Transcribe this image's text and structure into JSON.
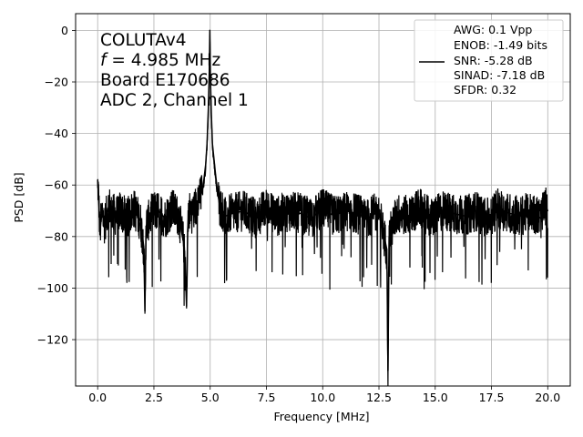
{
  "chart_data": {
    "type": "line",
    "xlabel": "Frequency [MHz]",
    "ylabel": "PSD [dB]",
    "xlim": [
      -0.98,
      21.0
    ],
    "ylim": [
      -138,
      6.5
    ],
    "xticks": [
      0.0,
      2.5,
      5.0,
      7.5,
      10.0,
      12.5,
      15.0,
      17.5,
      20.0
    ],
    "xtick_labels": [
      "0.0",
      "2.5",
      "5.0",
      "7.5",
      "10.0",
      "12.5",
      "15.0",
      "17.5",
      "20.0"
    ],
    "yticks": [
      0,
      -20,
      -40,
      -60,
      -80,
      -100,
      -120
    ],
    "ytick_labels": [
      "0",
      "−20",
      "−40",
      "−60",
      "−80",
      "−100",
      "−120"
    ],
    "grid": true,
    "line_color": "#000000",
    "annotation": {
      "lines": [
        "COLUTAv4",
        "f = 4.985 MHz",
        "Board E170686",
        "ADC 2, Channel 1"
      ],
      "italic_prefix": "f"
    },
    "legend": {
      "position": "top-right",
      "lines": [
        "AWG: 0.1 Vpp",
        "ENOB: -1.49 bits",
        "SNR: -5.28 dB",
        "SINAD: -7.18 dB",
        "SFDR: 0.32"
      ]
    },
    "series": [
      {
        "x": [
          0.0,
          0.05,
          0.1,
          0.2,
          0.3,
          0.5,
          0.8,
          1.0,
          1.3,
          1.6,
          1.9,
          2.05,
          2.1,
          2.15,
          2.4,
          2.7,
          3.0,
          3.3,
          3.6,
          3.85,
          3.95,
          4.0,
          4.05,
          4.2,
          4.4,
          4.55,
          4.65,
          4.72,
          4.8,
          4.86,
          4.92,
          4.96,
          4.985,
          5.01,
          5.05,
          5.1,
          5.17,
          5.24,
          5.32,
          5.42,
          5.55,
          5.7,
          6.0,
          6.5,
          7.0,
          7.5,
          8.0,
          8.5,
          9.0,
          9.5,
          10.0,
          10.5,
          11.0,
          11.5,
          12.0,
          12.5,
          12.85,
          12.9,
          12.95,
          13.3,
          13.8,
          14.3,
          14.8,
          15.3,
          15.8,
          16.3,
          16.8,
          17.3,
          17.8,
          18.3,
          18.8,
          19.3,
          19.7,
          19.9,
          20.0
        ],
        "y": [
          -58,
          -66,
          -78,
          -70,
          -75,
          -68,
          -72,
          -70,
          -73,
          -69,
          -74,
          -84,
          -109,
          -76,
          -71,
          -70,
          -73,
          -69,
          -72,
          -84,
          -107,
          -78,
          -70,
          -71,
          -68,
          -65,
          -62,
          -58,
          -52,
          -44,
          -30,
          -16,
          0,
          -18,
          -32,
          -44,
          -50,
          -56,
          -62,
          -68,
          -70,
          -72,
          -71,
          -70,
          -73,
          -69,
          -72,
          -70,
          -71,
          -73,
          -69,
          -72,
          -70,
          -71,
          -73,
          -70,
          -85,
          -132,
          -80,
          -71,
          -72,
          -69,
          -73,
          -70,
          -71,
          -72,
          -70,
          -73,
          -69,
          -71,
          -72,
          -70,
          -73,
          -68,
          -70
        ]
      }
    ]
  }
}
